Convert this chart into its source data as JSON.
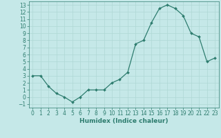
{
  "x": [
    0,
    1,
    2,
    3,
    4,
    5,
    6,
    7,
    8,
    9,
    10,
    11,
    12,
    13,
    14,
    15,
    16,
    17,
    18,
    19,
    20,
    21,
    22,
    23
  ],
  "y": [
    3,
    3,
    1.5,
    0.5,
    0,
    -0.7,
    0,
    1,
    1,
    1,
    2,
    2.5,
    3.5,
    7.5,
    8,
    10.5,
    12.5,
    13,
    12.5,
    11.5,
    9,
    8.5,
    5,
    5.5
  ],
  "xlabel": "Humidex (Indice chaleur)",
  "line_color": "#2d7c6e",
  "marker_size": 2.0,
  "bg_color": "#c5e8e8",
  "grid_color": "#afd8d4",
  "xlim": [
    -0.5,
    23.5
  ],
  "ylim": [
    -1.5,
    13.5
  ],
  "yticks": [
    -1,
    0,
    1,
    2,
    3,
    4,
    5,
    6,
    7,
    8,
    9,
    10,
    11,
    12,
    13
  ],
  "xticks": [
    0,
    1,
    2,
    3,
    4,
    5,
    6,
    7,
    8,
    9,
    10,
    11,
    12,
    13,
    14,
    15,
    16,
    17,
    18,
    19,
    20,
    21,
    22,
    23
  ],
  "tick_fontsize": 5.5,
  "xlabel_fontsize": 6.5,
  "linewidth": 0.9
}
